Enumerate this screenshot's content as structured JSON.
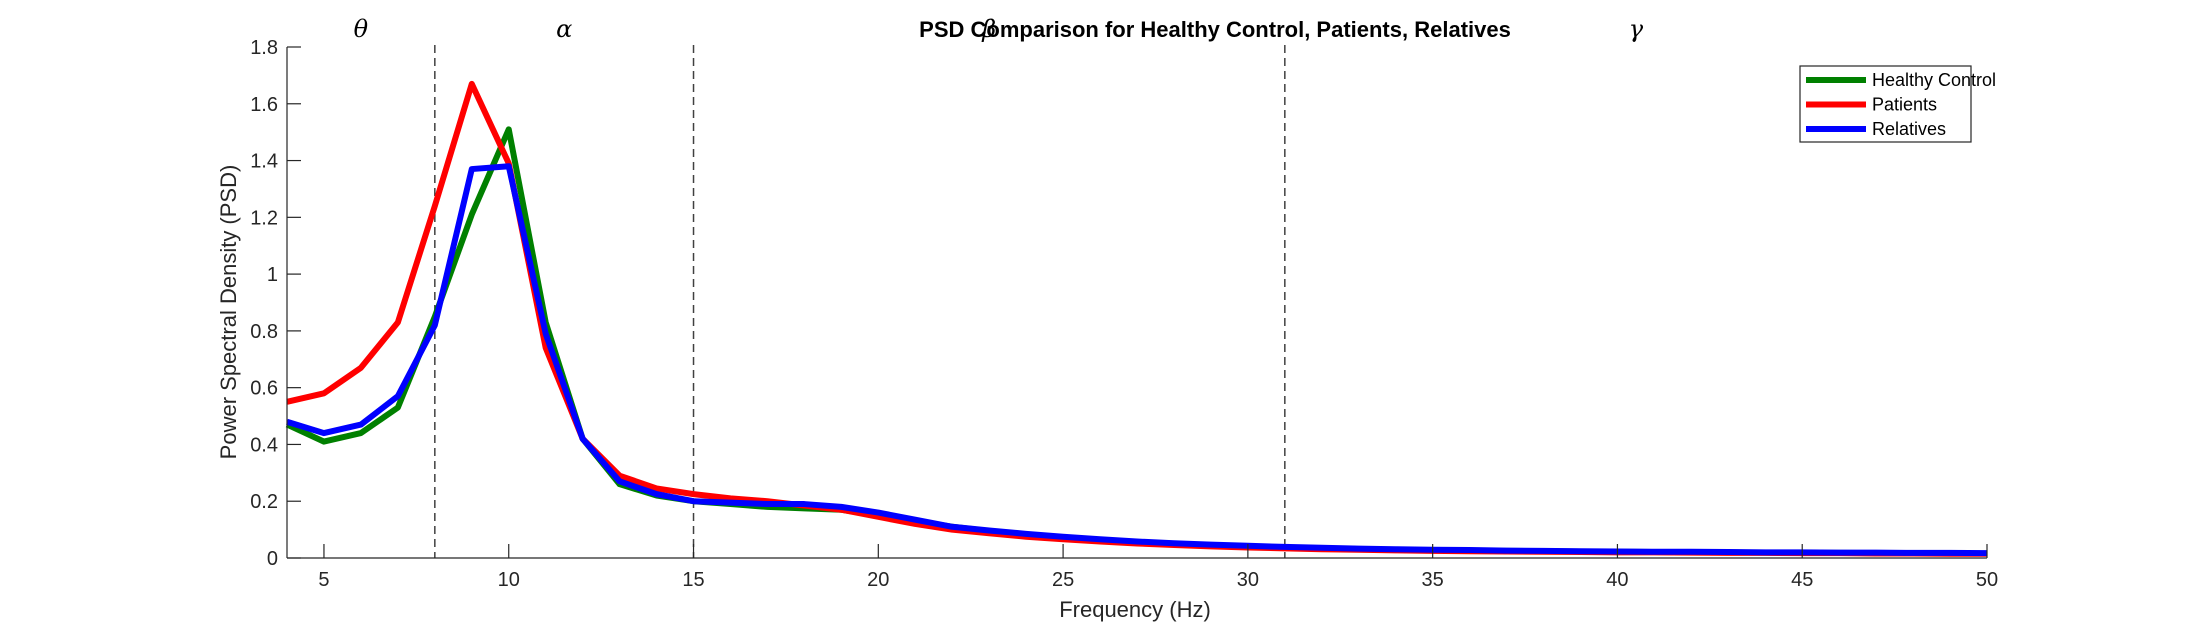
{
  "chart_data": {
    "type": "line",
    "title": "PSD Comparison for Healthy Control, Patients, Relatives",
    "xlabel": "Frequency (Hz)",
    "ylabel": "Power Spectral Density (PSD)",
    "xlim": [
      4,
      50
    ],
    "ylim": [
      0,
      1.8
    ],
    "xticks": [
      5,
      10,
      15,
      20,
      25,
      30,
      35,
      40,
      45,
      50
    ],
    "yticks": [
      0,
      0.2,
      0.4,
      0.6,
      0.8,
      1,
      1.2,
      1.4,
      1.6,
      1.8
    ],
    "xtick_labels": [
      "5",
      "10",
      "15",
      "20",
      "25",
      "30",
      "35",
      "40",
      "45",
      "50"
    ],
    "ytick_labels": [
      "0",
      "0.2",
      "0.4",
      "0.6",
      "0.8",
      "1",
      "1.2",
      "1.4",
      "1.6",
      "1.8"
    ],
    "grid": false,
    "legend_position": "top-right",
    "band_boundaries": [
      8,
      15,
      31
    ],
    "band_labels": [
      {
        "label": "θ",
        "x": 6
      },
      {
        "label": "α",
        "x": 11.5
      },
      {
        "label": "β",
        "x": 23
      },
      {
        "label": "γ",
        "x": 40.5
      }
    ],
    "x": [
      4,
      5,
      6,
      7,
      8,
      9,
      10,
      11,
      12,
      13,
      14,
      15,
      16,
      17,
      18,
      19,
      20,
      21,
      22,
      23,
      24,
      25,
      26,
      27,
      28,
      29,
      30,
      31,
      32,
      33,
      34,
      35,
      36,
      37,
      38,
      39,
      40,
      41,
      42,
      43,
      44,
      45,
      46,
      47,
      48,
      49,
      50
    ],
    "series": [
      {
        "name": "Healthy Control",
        "color": "#008000",
        "values": [
          0.47,
          0.41,
          0.44,
          0.53,
          0.85,
          1.21,
          1.51,
          0.83,
          0.42,
          0.26,
          0.22,
          0.2,
          0.19,
          0.18,
          0.175,
          0.17,
          0.15,
          0.13,
          0.11,
          0.095,
          0.082,
          0.072,
          0.063,
          0.055,
          0.049,
          0.044,
          0.04,
          0.036,
          0.033,
          0.031,
          0.029,
          0.027,
          0.026,
          0.025,
          0.024,
          0.023,
          0.022,
          0.021,
          0.02,
          0.02,
          0.019,
          0.018,
          0.018,
          0.017,
          0.017,
          0.016,
          0.016
        ]
      },
      {
        "name": "Patients",
        "color": "#ff0000",
        "values": [
          0.55,
          0.58,
          0.67,
          0.83,
          1.24,
          1.67,
          1.39,
          0.74,
          0.42,
          0.29,
          0.245,
          0.225,
          0.21,
          0.2,
          0.185,
          0.17,
          0.145,
          0.12,
          0.1,
          0.087,
          0.075,
          0.066,
          0.058,
          0.051,
          0.046,
          0.041,
          0.037,
          0.034,
          0.031,
          0.029,
          0.027,
          0.025,
          0.024,
          0.023,
          0.022,
          0.021,
          0.02,
          0.02,
          0.019,
          0.018,
          0.018,
          0.017,
          0.017,
          0.016,
          0.016,
          0.015,
          0.015
        ]
      },
      {
        "name": "Relatives",
        "color": "#0000ff",
        "values": [
          0.48,
          0.44,
          0.47,
          0.57,
          0.82,
          1.37,
          1.38,
          0.79,
          0.42,
          0.27,
          0.225,
          0.2,
          0.195,
          0.19,
          0.19,
          0.18,
          0.16,
          0.135,
          0.11,
          0.097,
          0.085,
          0.075,
          0.066,
          0.058,
          0.052,
          0.047,
          0.043,
          0.039,
          0.036,
          0.033,
          0.031,
          0.029,
          0.028,
          0.026,
          0.025,
          0.024,
          0.023,
          0.022,
          0.022,
          0.021,
          0.02,
          0.02,
          0.019,
          0.019,
          0.018,
          0.018,
          0.017
        ]
      }
    ]
  }
}
